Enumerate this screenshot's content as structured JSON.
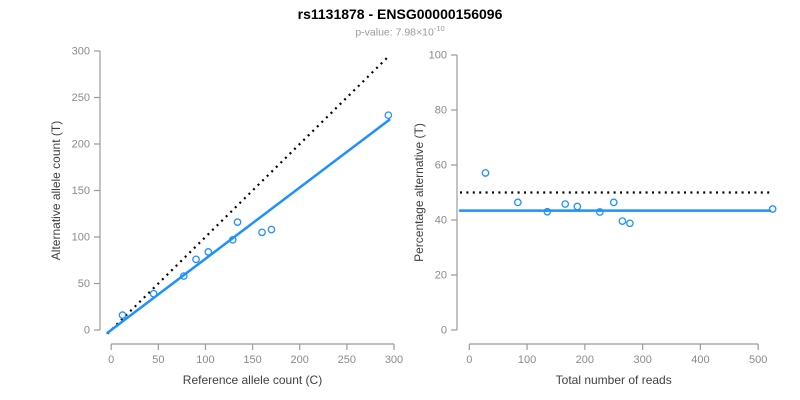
{
  "header": {
    "title": "rs1131878 - ENSG00000156096",
    "subtitle_prefix": "p-value: 7.98×10",
    "subtitle_exponent": "-10"
  },
  "colors": {
    "accent_blue": "#1E90FF",
    "dotted_black": "#000000",
    "axis_line_gray": "#9b9b9b",
    "tick_label_gray": "#8a8a8a",
    "axis_title_gray": "#404040",
    "subtitle_gray": "#9a9a9a"
  },
  "chart_data": [
    {
      "type": "scatter",
      "title": "",
      "xlabel": "Reference allele count (C)",
      "ylabel": "Alternative allele count (T)",
      "xlim": [
        0,
        300
      ],
      "ylim": [
        0,
        300
      ],
      "xticks": [
        0,
        50,
        100,
        150,
        200,
        250,
        300
      ],
      "yticks": [
        0,
        50,
        100,
        150,
        200,
        250,
        300
      ],
      "grid": false,
      "legend": "none",
      "points": [
        [
          12,
          16
        ],
        [
          45,
          39
        ],
        [
          77,
          58
        ],
        [
          90,
          76
        ],
        [
          103,
          84
        ],
        [
          129,
          97
        ],
        [
          134,
          116
        ],
        [
          160,
          105
        ],
        [
          170,
          108
        ],
        [
          294,
          231
        ]
      ],
      "lines": [
        {
          "name": "identity-line",
          "style": "dotted",
          "color": "#000000",
          "slope": 1,
          "intercept": 0
        },
        {
          "name": "fit-line",
          "style": "solid",
          "color": "#1E90FF",
          "slope": 0.766,
          "intercept": 0
        }
      ]
    },
    {
      "type": "scatter",
      "title": "",
      "xlabel": "Total number of reads",
      "ylabel": "Percentage alternative (T)",
      "xlim": [
        0,
        500
      ],
      "ylim": [
        0,
        100
      ],
      "xticks": [
        0,
        100,
        200,
        300,
        400,
        500
      ],
      "yticks": [
        0,
        20,
        40,
        60,
        80,
        100
      ],
      "grid": false,
      "legend": "none",
      "points": [
        [
          28,
          57.1
        ],
        [
          84,
          46.4
        ],
        [
          135,
          43.0
        ],
        [
          166,
          45.8
        ],
        [
          187,
          44.9
        ],
        [
          226,
          42.9
        ],
        [
          250,
          46.4
        ],
        [
          265,
          39.6
        ],
        [
          278,
          38.8
        ],
        [
          525,
          44.0
        ]
      ],
      "lines": [
        {
          "name": "expected-50pct-line",
          "style": "dotted",
          "color": "#000000",
          "hline": 50
        },
        {
          "name": "mean-percentage-line",
          "style": "solid",
          "color": "#1E90FF",
          "hline": 43.4
        }
      ]
    }
  ]
}
